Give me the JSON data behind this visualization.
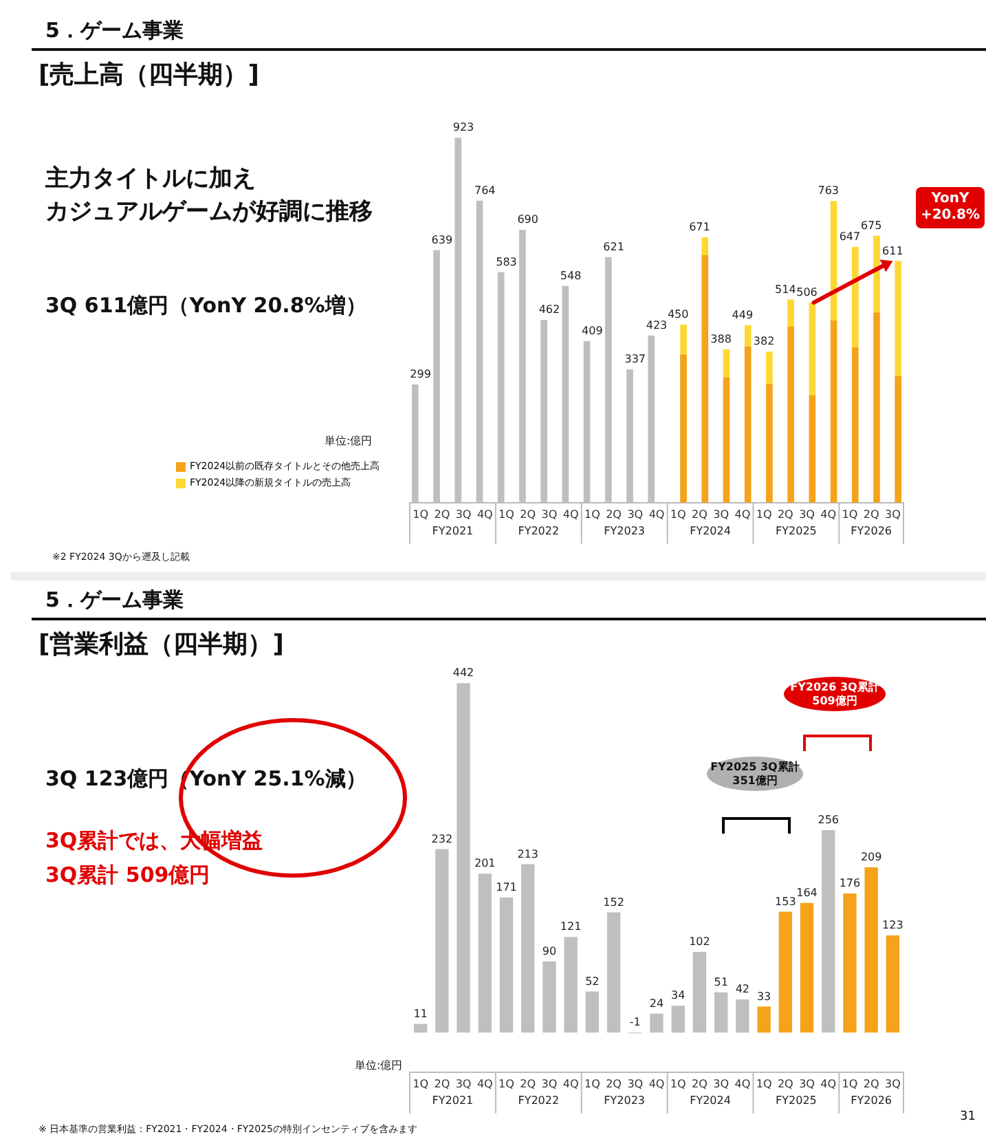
{
  "chart_data": [
    {
      "type": "bar",
      "stacked": true,
      "legend": "left",
      "tick_labels": "x",
      "grid": false,
      "categories": [
        "1Q",
        "2Q",
        "3Q",
        "4Q",
        "1Q",
        "2Q",
        "3Q",
        "4Q",
        "1Q",
        "2Q",
        "3Q",
        "4Q",
        "1Q",
        "2Q",
        "3Q",
        "4Q",
        "1Q",
        "2Q",
        "3Q",
        "4Q",
        "1Q",
        "2Q",
        "3Q"
      ],
      "series": [
        {
          "color": "#bfbfbf",
          "values": [
            299,
            639,
            923,
            764,
            583,
            690,
            462,
            548,
            409,
            621,
            337,
            423,
            null,
            null,
            null,
            null,
            null,
            null,
            null,
            null,
            null,
            null,
            null
          ],
          "value_labels": [
            "299",
            "639",
            "923",
            "764",
            "583",
            "690",
            "462",
            "548",
            "409",
            "621",
            "337",
            "423",
            null,
            null,
            null,
            null,
            null,
            null,
            null,
            null,
            null,
            null,
            null
          ]
        },
        {
          "name": "FY2024以前の既存タイトルとその他売上高",
          "color": "#f5a31a",
          "values": [
            null,
            null,
            null,
            null,
            null,
            null,
            null,
            null,
            null,
            null,
            null,
            null,
            375,
            626,
            317,
            395,
            300,
            445,
            272,
            461,
            393,
            481,
            320
          ]
        },
        {
          "name": "FY2024以降の新規タイトルの売上高",
          "color": "#fdd835",
          "values": [
            null,
            null,
            null,
            null,
            null,
            null,
            null,
            null,
            null,
            null,
            null,
            null,
            75,
            45,
            71,
            54,
            82,
            69,
            234,
            302,
            254,
            194,
            291
          ]
        }
      ],
      "totals": [
        null,
        null,
        null,
        null,
        null,
        null,
        null,
        null,
        null,
        null,
        null,
        null,
        "450",
        "671",
        "388",
        "449",
        "382",
        "514",
        "506",
        "763",
        "647",
        "675",
        "611"
      ],
      "annotations": [
        "FY2021",
        "FY2022",
        "FY2023",
        "FY2024",
        "FY2025",
        "FY2026",
        "5．ゲーム事業",
        "[売上高（四半期）]",
        "主力タイトルに加え",
        "カジュアルゲームが好調に推移",
        "3Q 611億円（YonY 20.8%増）",
        "単位:億円",
        "YonY +20.8%",
        "※2 FY2024 3Qから遡及し記載"
      ]
    },
    {
      "type": "bar",
      "tick_labels": "x",
      "grid": false,
      "data_labels": true,
      "categories": [
        "1Q",
        "2Q",
        "3Q",
        "4Q",
        "1Q",
        "2Q",
        "3Q",
        "4Q",
        "1Q",
        "2Q",
        "3Q",
        "4Q",
        "1Q",
        "2Q",
        "3Q",
        "4Q",
        "1Q",
        "2Q",
        "3Q",
        "4Q",
        "1Q",
        "2Q",
        "3Q"
      ],
      "values": [
        11,
        232,
        442,
        201,
        171,
        213,
        90,
        121,
        52,
        152,
        -1,
        24,
        34,
        102,
        51,
        42,
        33,
        153,
        164,
        256,
        176,
        209,
        123
      ],
      "colors": [
        "#bfbfbf",
        "#bfbfbf",
        "#bfbfbf",
        "#bfbfbf",
        "#bfbfbf",
        "#bfbfbf",
        "#bfbfbf",
        "#bfbfbf",
        "#bfbfbf",
        "#bfbfbf",
        "#bfbfbf",
        "#bfbfbf",
        "#bfbfbf",
        "#bfbfbf",
        "#bfbfbf",
        "#bfbfbf",
        "#f5a31a",
        "#f5a31a",
        "#f5a31a",
        "#bfbfbf",
        "#f5a31a",
        "#f5a31a",
        "#f5a31a"
      ],
      "annotations": [
        "FY2021",
        "FY2022",
        "FY2023",
        "FY2024",
        "FY2025",
        "FY2026",
        "5．ゲーム事業",
        "[営業利益（四半期）]",
        "3Q 123億円（YonY 25.1%減）",
        "3Q累計では、大幅増益",
        "3Q累計 509億円",
        "単位:億円",
        "FY2025 3Q累計 351億円",
        "FY2026 3Q累計 509億円",
        "※ 日本基準の営業利益：FY2021・FY2024・FY2025の特別インセンティブを含みます",
        "31"
      ]
    }
  ]
}
